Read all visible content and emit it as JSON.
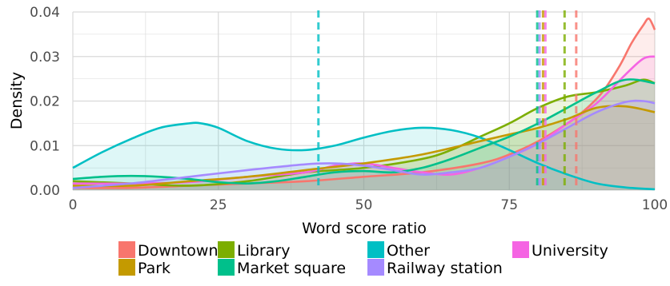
{
  "chart_data": {
    "type": "area",
    "xlabel": "Word score ratio",
    "ylabel": "Density",
    "xlim": [
      0,
      100
    ],
    "ylim": [
      0,
      0.04
    ],
    "x_ticks": [
      0,
      25,
      50,
      75,
      100
    ],
    "y_ticks": [
      0.0,
      0.01,
      0.02,
      0.03,
      0.04
    ],
    "x_tick_labels": [
      "0",
      "25",
      "50",
      "75",
      "100"
    ],
    "y_tick_labels": [
      "0.00",
      "0.01",
      "0.02",
      "0.03",
      "0.04"
    ],
    "grid": true,
    "legend_position": "bottom",
    "series": [
      {
        "name": "Downtown",
        "color": "#F8766D",
        "mean": 86.5,
        "x": [
          0,
          10,
          20,
          30,
          40,
          50,
          60,
          70,
          75,
          80,
          85,
          88,
          91,
          94,
          96,
          98,
          99,
          100
        ],
        "y": [
          0.0005,
          0.0005,
          0.001,
          0.0015,
          0.002,
          0.003,
          0.004,
          0.006,
          0.008,
          0.011,
          0.015,
          0.018,
          0.022,
          0.028,
          0.033,
          0.037,
          0.0385,
          0.036
        ]
      },
      {
        "name": "Library",
        "color": "#7CAE00",
        "mean": 84.5,
        "x": [
          0,
          10,
          20,
          30,
          40,
          50,
          60,
          65,
          70,
          75,
          80,
          85,
          90,
          95,
          98,
          100
        ],
        "y": [
          0.002,
          0.0015,
          0.001,
          0.002,
          0.004,
          0.005,
          0.007,
          0.009,
          0.012,
          0.015,
          0.0185,
          0.021,
          0.022,
          0.0235,
          0.0248,
          0.024
        ]
      },
      {
        "name": "Other",
        "color": "#00BFC4",
        "mean": 42.2,
        "x": [
          0,
          5,
          10,
          15,
          20,
          22,
          25,
          30,
          35,
          40,
          45,
          50,
          55,
          60,
          65,
          70,
          75,
          80,
          85,
          90,
          95,
          100
        ],
        "y": [
          0.005,
          0.0085,
          0.0115,
          0.014,
          0.015,
          0.015,
          0.014,
          0.011,
          0.0093,
          0.009,
          0.01,
          0.0118,
          0.0133,
          0.014,
          0.0135,
          0.0118,
          0.009,
          0.006,
          0.0035,
          0.0015,
          0.0006,
          0.0002
        ]
      },
      {
        "name": "University",
        "color": "#F564E3",
        "mean": 81.2,
        "x": [
          0,
          10,
          20,
          30,
          40,
          45,
          50,
          55,
          60,
          65,
          70,
          75,
          80,
          85,
          90,
          95,
          98,
          100
        ],
        "y": [
          0.0015,
          0.0015,
          0.0018,
          0.003,
          0.004,
          0.0055,
          0.006,
          0.005,
          0.004,
          0.0035,
          0.005,
          0.0075,
          0.0105,
          0.015,
          0.0195,
          0.026,
          0.0295,
          0.03
        ]
      },
      {
        "name": "Park",
        "color": "#C49A00",
        "mean": 80.8,
        "x": [
          0,
          10,
          20,
          30,
          40,
          50,
          60,
          70,
          75,
          80,
          85,
          90,
          95,
          100
        ],
        "y": [
          0.001,
          0.001,
          0.002,
          0.003,
          0.0045,
          0.006,
          0.008,
          0.011,
          0.0125,
          0.014,
          0.016,
          0.0185,
          0.0188,
          0.0175
        ]
      },
      {
        "name": "Market square",
        "color": "#00C08B",
        "mean": 79.8,
        "x": [
          0,
          5,
          10,
          15,
          20,
          25,
          30,
          35,
          40,
          45,
          50,
          55,
          60,
          65,
          70,
          75,
          80,
          85,
          90,
          95,
          100
        ],
        "y": [
          0.0025,
          0.003,
          0.0032,
          0.003,
          0.0025,
          0.0018,
          0.0015,
          0.002,
          0.003,
          0.004,
          0.0043,
          0.004,
          0.005,
          0.007,
          0.0095,
          0.012,
          0.015,
          0.0185,
          0.022,
          0.0248,
          0.024
        ]
      },
      {
        "name": "Railway station",
        "color": "#A58AFF",
        "mean": 80.2,
        "x": [
          0,
          10,
          20,
          30,
          40,
          45,
          50,
          55,
          60,
          65,
          70,
          75,
          80,
          85,
          90,
          95,
          98,
          100
        ],
        "y": [
          0.0005,
          0.0015,
          0.003,
          0.0045,
          0.0058,
          0.006,
          0.0055,
          0.0045,
          0.0035,
          0.004,
          0.005,
          0.0075,
          0.0105,
          0.014,
          0.0175,
          0.0198,
          0.02,
          0.0195
        ]
      }
    ]
  },
  "legend": {
    "rows": [
      [
        "Downtown",
        "Library",
        "Other",
        "University"
      ],
      [
        "Park",
        "Market square",
        "Railway station"
      ]
    ]
  },
  "colors": {
    "panel_background": "#ffffff",
    "grid": "#d9d9d9"
  }
}
